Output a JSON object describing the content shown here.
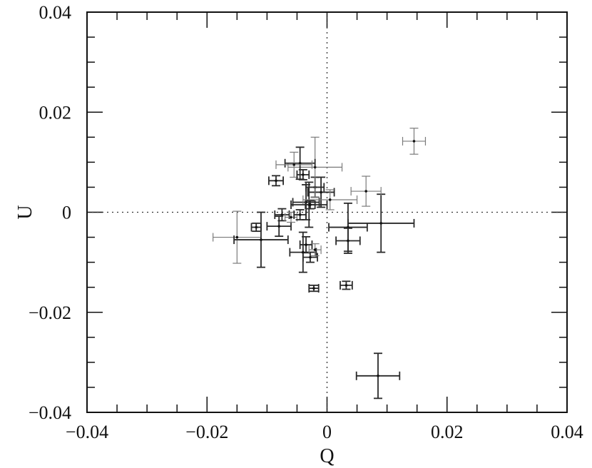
{
  "chart_data": {
    "type": "scatter",
    "xlabel": "Q",
    "ylabel": "U",
    "xlim": [
      -0.04,
      0.04
    ],
    "ylim": [
      -0.04,
      0.04
    ],
    "x_ticks": [
      -0.04,
      -0.02,
      0,
      0.02,
      0.04
    ],
    "y_ticks": [
      -0.04,
      -0.02,
      0,
      0.02,
      0.04
    ],
    "x_tick_labels": [
      "−0.04",
      "−0.02",
      "0",
      "0.02",
      "0.04"
    ],
    "y_tick_labels": [
      "−0.04",
      "−0.02",
      "0",
      "0.02",
      "0.04"
    ],
    "grid": false,
    "reference_lines": [
      {
        "axis": "x",
        "value": 0,
        "style": "dotted"
      },
      {
        "axis": "y",
        "value": 0,
        "style": "dotted"
      }
    ],
    "points": [
      {
        "q": 0.0145,
        "u": 0.0142,
        "eq": 0.0019,
        "eu": 0.0026,
        "tone": "light"
      },
      {
        "q": 0.0085,
        "u": -0.0327,
        "eq": 0.0036,
        "eu": 0.0045,
        "tone": "dark"
      },
      {
        "q": 0.0032,
        "u": -0.0146,
        "eq": 0.001,
        "eu": 0.0008,
        "tone": "dark"
      },
      {
        "q": -0.0022,
        "u": -0.0152,
        "eq": 0.0008,
        "eu": 0.0006,
        "tone": "dark"
      },
      {
        "q": 0.009,
        "u": -0.0022,
        "eq": 0.0055,
        "eu": 0.0058,
        "tone": "dark"
      },
      {
        "q": 0.0065,
        "u": 0.0042,
        "eq": 0.0025,
        "eu": 0.003,
        "tone": "light"
      },
      {
        "q": 0.0035,
        "u": -0.003,
        "eq": 0.0032,
        "eu": 0.0048,
        "tone": "dark"
      },
      {
        "q": 0.0035,
        "u": -0.0057,
        "eq": 0.002,
        "eu": 0.0025,
        "tone": "dark"
      },
      {
        "q": -0.003,
        "u": 0.0015,
        "eq": 0.003,
        "eu": 0.0045,
        "tone": "dark"
      },
      {
        "q": -0.0035,
        "u": 0.002,
        "eq": 0.0022,
        "eu": 0.0035,
        "tone": "dark"
      },
      {
        "q": -0.0028,
        "u": 0.0015,
        "eq": 0.0008,
        "eu": 0.0008,
        "tone": "dark"
      },
      {
        "q": -0.001,
        "u": 0.004,
        "eq": 0.0022,
        "eu": 0.003,
        "tone": "dark"
      },
      {
        "q": -0.002,
        "u": 0.005,
        "eq": 0.0015,
        "eu": 0.002,
        "tone": "dark"
      },
      {
        "q": 0.0005,
        "u": 0.0025,
        "eq": 0.0045,
        "eu": 0.002,
        "tone": "light"
      },
      {
        "q": -0.002,
        "u": 0.009,
        "eq": 0.0045,
        "eu": 0.006,
        "tone": "light"
      },
      {
        "q": -0.0045,
        "u": 0.0098,
        "eq": 0.0025,
        "eu": 0.0032,
        "tone": "dark"
      },
      {
        "q": -0.0055,
        "u": 0.0095,
        "eq": 0.003,
        "eu": 0.0025,
        "tone": "light"
      },
      {
        "q": -0.004,
        "u": 0.0075,
        "eq": 0.001,
        "eu": 0.001,
        "tone": "dark"
      },
      {
        "q": -0.0085,
        "u": 0.0063,
        "eq": 0.0012,
        "eu": 0.001,
        "tone": "dark"
      },
      {
        "q": -0.0075,
        "u": -0.0005,
        "eq": 0.0012,
        "eu": 0.0012,
        "tone": "dark"
      },
      {
        "q": -0.008,
        "u": -0.0028,
        "eq": 0.002,
        "eu": 0.002,
        "tone": "dark"
      },
      {
        "q": -0.006,
        "u": -0.001,
        "eq": 0.001,
        "eu": 0.001,
        "tone": "light"
      },
      {
        "q": -0.0045,
        "u": -0.0005,
        "eq": 0.001,
        "eu": 0.001,
        "tone": "dark"
      },
      {
        "q": -0.0118,
        "u": -0.003,
        "eq": 0.0008,
        "eu": 0.0008,
        "tone": "dark"
      },
      {
        "q": -0.015,
        "u": -0.005,
        "eq": 0.004,
        "eu": 0.0052,
        "tone": "light"
      },
      {
        "q": -0.011,
        "u": -0.0055,
        "eq": 0.0045,
        "eu": 0.0055,
        "tone": "dark"
      },
      {
        "q": -0.0035,
        "u": -0.0065,
        "eq": 0.001,
        "eu": 0.0016,
        "tone": "dark"
      },
      {
        "q": -0.004,
        "u": -0.008,
        "eq": 0.0022,
        "eu": 0.004,
        "tone": "dark"
      },
      {
        "q": -0.0028,
        "u": -0.009,
        "eq": 0.0012,
        "eu": 0.001,
        "tone": "dark"
      },
      {
        "q": -0.002,
        "u": -0.0075,
        "eq": 0.001,
        "eu": 0.0012,
        "tone": "light"
      }
    ]
  }
}
